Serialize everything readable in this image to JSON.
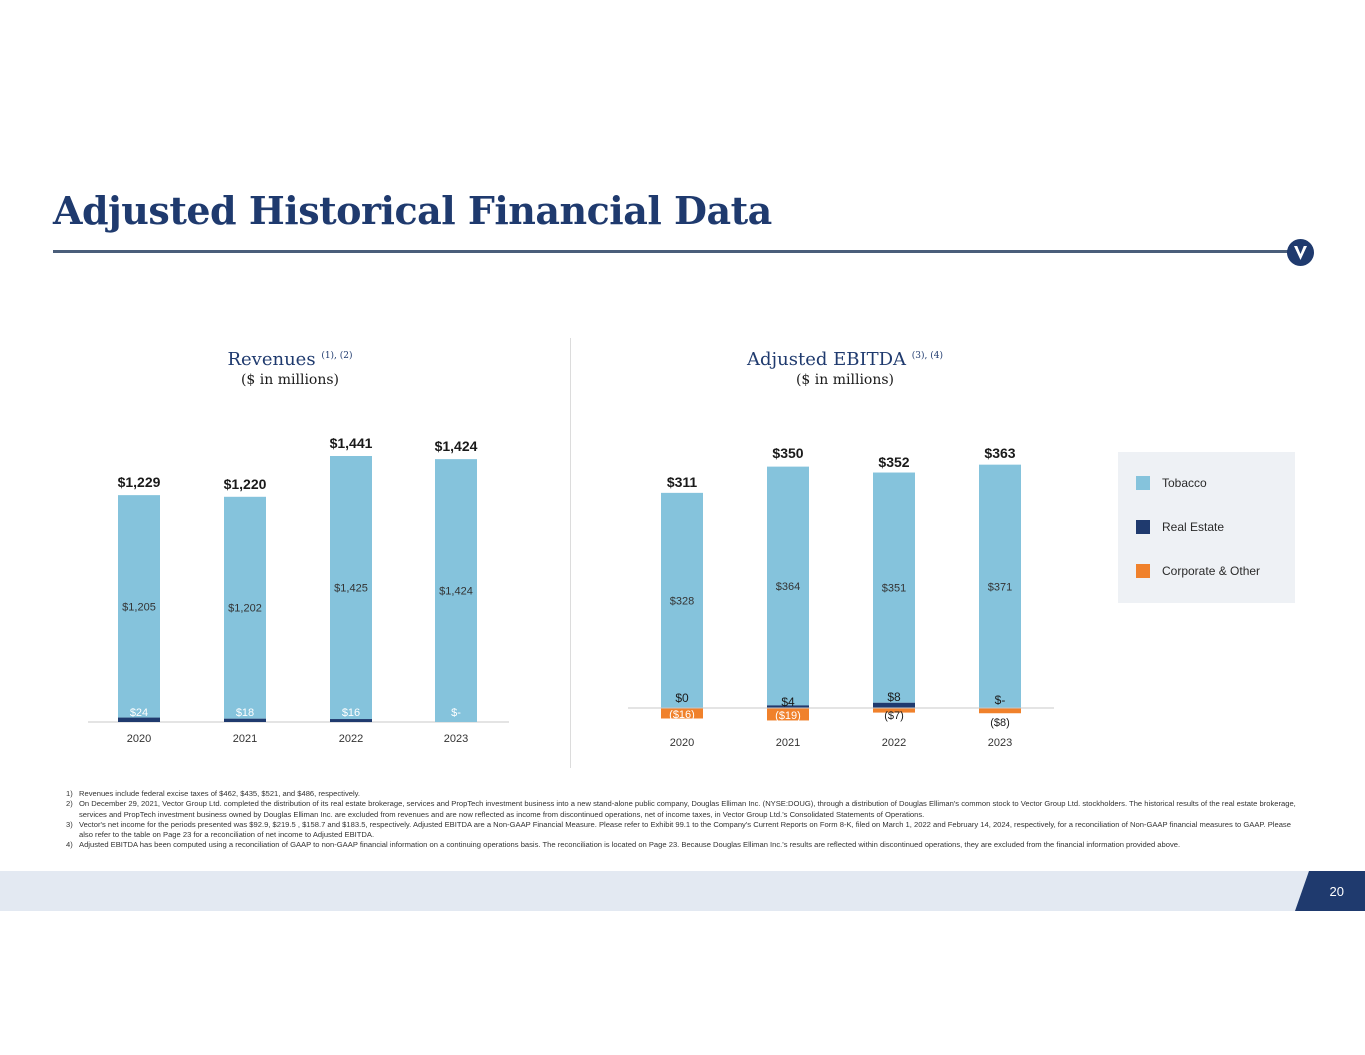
{
  "page": {
    "title": "Adjusted Historical Financial Data",
    "page_number": "20"
  },
  "revenues": {
    "title": "Revenues",
    "footnote_ref": "(1), (2)",
    "subtitle": "($ in millions)"
  },
  "ebitda": {
    "title": "Adjusted EBITDA",
    "footnote_ref": "(3), (4)",
    "subtitle": "($ in millions)"
  },
  "legend": {
    "items": [
      {
        "label": "Tobacco",
        "color": "#85c3dc"
      },
      {
        "label": "Real Estate",
        "color": "#1f3a6e"
      },
      {
        "label": "Corporate & Other",
        "color": "#f0812b"
      }
    ]
  },
  "colors": {
    "tobacco": "#85c3dc",
    "real_estate": "#1f3a6e",
    "corporate": "#f0812b"
  },
  "chart_data": [
    {
      "type": "bar",
      "stacked": true,
      "title": "Revenues (1), (2)",
      "subtitle": "($ in millions)",
      "categories": [
        "2020",
        "2021",
        "2022",
        "2023"
      ],
      "series": [
        {
          "name": "Tobacco",
          "values": [
            1205,
            1202,
            1425,
            1424
          ],
          "labels": [
            "$1,205",
            "$1,202",
            "$1,425",
            "$1,424"
          ]
        },
        {
          "name": "Real Estate",
          "values": [
            24,
            18,
            16,
            0
          ],
          "labels": [
            "$24",
            "$18",
            "$16",
            "$-"
          ]
        }
      ],
      "totals": [
        1229,
        1220,
        1441,
        1424
      ],
      "total_labels": [
        "$1,229",
        "$1,220",
        "$1,441",
        "$1,424"
      ],
      "ylim": [
        0,
        1441
      ]
    },
    {
      "type": "bar",
      "stacked": true,
      "title": "Adjusted EBITDA (3), (4)",
      "subtitle": "($ in millions)",
      "categories": [
        "2020",
        "2021",
        "2022",
        "2023"
      ],
      "series": [
        {
          "name": "Tobacco",
          "values": [
            328,
            364,
            351,
            371
          ],
          "labels": [
            "$328",
            "$364",
            "$351",
            "$371"
          ]
        },
        {
          "name": "Real Estate",
          "values": [
            0,
            4,
            8,
            0
          ],
          "labels": [
            "$0",
            "$4",
            "$8",
            "$-"
          ]
        },
        {
          "name": "Corporate & Other",
          "values": [
            -16,
            -19,
            -7,
            -8
          ],
          "labels": [
            "($16)",
            "($19)",
            "($7)",
            "($8)"
          ]
        }
      ],
      "totals": [
        311,
        350,
        352,
        363
      ],
      "total_labels": [
        "$311",
        "$350",
        "$352",
        "$363"
      ],
      "ylim": [
        -19,
        372
      ]
    }
  ],
  "footnotes": [
    {
      "num": "1)",
      "text": "Revenues include federal excise taxes of $462, $435, $521, and $486, respectively."
    },
    {
      "num": "2)",
      "text": "On December 29, 2021, Vector Group Ltd. completed the distribution of its real estate brokerage, services and PropTech investment business into a new stand-alone public company, Douglas Elliman Inc. (NYSE:DOUG), through a distribution of Douglas Elliman's common stock to Vector Group Ltd. stockholders. The historical results of the real estate brokerage, services and PropTech investment business owned by Douglas Elliman Inc. are excluded from revenues and are now reflected as income from discontinued operations, net of income taxes, in Vector Group Ltd.'s Consolidated Statements of Operations."
    },
    {
      "num": "3)",
      "text": "Vector's net income for the periods presented was $92.9, $219.5 , $158.7 and $183.5, respectively. Adjusted EBITDA are a Non-GAAP Financial Measure. Please refer to Exhibit 99.1 to the Company's Current Reports on Form 8-K, filed on March 1, 2022 and February 14, 2024, respectively, for a reconciliation of Non-GAAP financial measures to GAAP. Please also refer to the table on Page 23 for a reconciliation of net income to Adjusted EBITDA."
    },
    {
      "num": "4)",
      "text": "Adjusted EBITDA has been computed using a reconciliation of GAAP to non-GAAP financial information on a continuing operations basis. The reconciliation is located on Page 23. Because Douglas Elliman Inc.'s results are reflected within discontinued operations, they are excluded from the financial information provided above."
    }
  ]
}
